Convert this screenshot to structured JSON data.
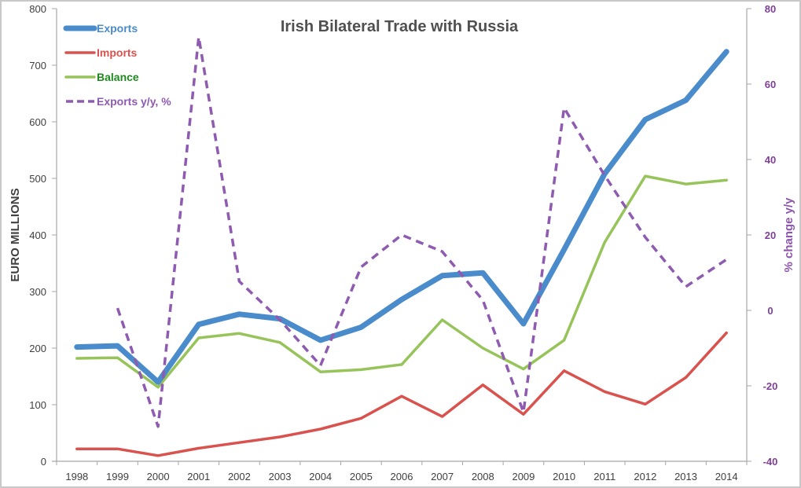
{
  "chart_data": {
    "type": "line",
    "title": "Irish Bilateral Trade with Russia",
    "xlabel": "",
    "ylabel": "EURO MILLIONS",
    "y2label": "% change y/y",
    "ylim": [
      0,
      800
    ],
    "y2lim": [
      -40,
      80
    ],
    "yticks": [
      0,
      100,
      200,
      300,
      400,
      500,
      600,
      700,
      800
    ],
    "y2ticks": [
      -40,
      -20,
      0,
      20,
      40,
      60,
      80
    ],
    "grid": false,
    "legend_position": "top-left",
    "categories": [
      "1998",
      "1999",
      "2000",
      "2001",
      "2002",
      "2003",
      "2004",
      "2005",
      "2006",
      "2007",
      "2008",
      "2009",
      "2010",
      "2011",
      "2012",
      "2013",
      "2014"
    ],
    "series": [
      {
        "name": "Exports",
        "axis": "left",
        "color": "#4a8ccb",
        "width": 7,
        "dash": "",
        "values": [
          202,
          204,
          140,
          242,
          260,
          252,
          214,
          237,
          286,
          328,
          333,
          243,
          374,
          508,
          604,
          638,
          724
        ]
      },
      {
        "name": "Imports",
        "axis": "left",
        "color": "#d9524e",
        "width": 3.5,
        "dash": "",
        "values": [
          22,
          22,
          10,
          23,
          33,
          43,
          57,
          76,
          115,
          79,
          135,
          83,
          160,
          123,
          101,
          148,
          227
        ]
      },
      {
        "name": "Balance",
        "axis": "left",
        "color": "#97c45a",
        "width": 3.5,
        "dash": "",
        "values": [
          182,
          183,
          131,
          218,
          226,
          210,
          158,
          162,
          171,
          250,
          200,
          163,
          214,
          387,
          504,
          490,
          497
        ]
      },
      {
        "name": "Exports y/y, %",
        "axis": "right",
        "color": "#8e5bb0",
        "width": 3.5,
        "dash": "10,7",
        "values": [
          null,
          0.6,
          -30.8,
          72.5,
          7.7,
          -2.5,
          -14.6,
          11.5,
          20,
          15.6,
          2.7,
          -27,
          53.7,
          35.8,
          19.4,
          6.3,
          13.5
        ]
      }
    ]
  },
  "legend": [
    {
      "label": "Exports",
      "color": "#4a8ccb",
      "text_color": "#4a8ccb"
    },
    {
      "label": "Imports",
      "color": "#d9524e",
      "text_color": "#d9524e"
    },
    {
      "label": "Balance",
      "color": "#97c45a",
      "text_color": "#1e8a1e"
    },
    {
      "label": "Exports y/y, %",
      "color": "#8e5bb0",
      "text_color": "#8e5bb0"
    }
  ]
}
